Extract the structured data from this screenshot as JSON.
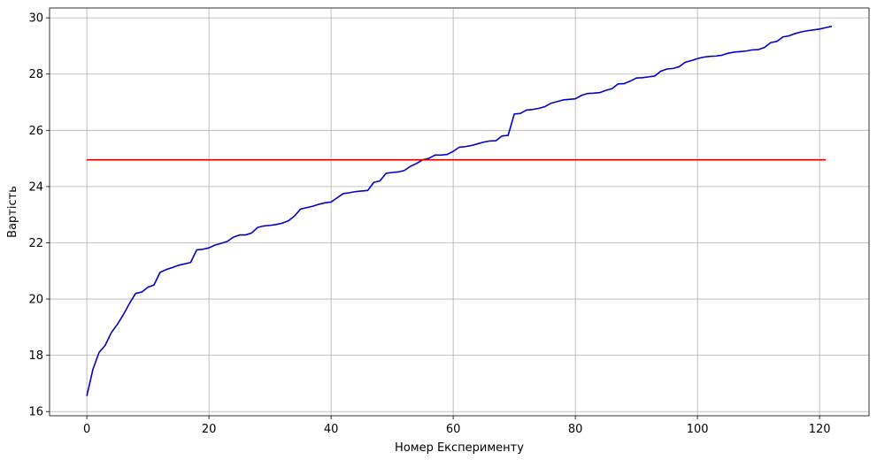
{
  "chart_data": {
    "type": "line",
    "title": "",
    "xlabel": "Номер Експерименту",
    "ylabel": "Вартість",
    "xlim": [
      -6.1,
      128.1
    ],
    "ylim": [
      15.85,
      30.35
    ],
    "xticks": [
      0,
      20,
      40,
      60,
      80,
      100,
      120
    ],
    "yticks": [
      16,
      18,
      20,
      22,
      24,
      26,
      28,
      30
    ],
    "grid": true,
    "legend": "none",
    "colors": {
      "series": "#0000cc",
      "reference": "#dd0000",
      "grid": "#b0b0b0",
      "frame": "#000000"
    },
    "series": [
      {
        "x": [
          0,
          1,
          2,
          3,
          4,
          5,
          6,
          7,
          8,
          9,
          10,
          11,
          12,
          13,
          14,
          15,
          16,
          17,
          18,
          19,
          20,
          21,
          22,
          23,
          24,
          25,
          26,
          27,
          28,
          29,
          30,
          31,
          32,
          33,
          34,
          35,
          36,
          37,
          38,
          39,
          40,
          41,
          42,
          43,
          44,
          45,
          46,
          47,
          48,
          49,
          50,
          51,
          52,
          53,
          54,
          55,
          56,
          57,
          58,
          59,
          60,
          61,
          62,
          63,
          64,
          65,
          66,
          67,
          68,
          69,
          70,
          71,
          72,
          73,
          74,
          75,
          76,
          77,
          78,
          79,
          80,
          81,
          82,
          83,
          84,
          85,
          86,
          87,
          88,
          89,
          90,
          91,
          92,
          93,
          94,
          95,
          96,
          97,
          98,
          99,
          100,
          101,
          102,
          103,
          104,
          105,
          106,
          107,
          108,
          109,
          110,
          111,
          112,
          113,
          114,
          115,
          116,
          117,
          118,
          119,
          120,
          121,
          122
        ],
        "values": [
          16.55,
          17.5,
          18.1,
          18.35,
          18.8,
          19.1,
          19.45,
          19.85,
          20.2,
          20.25,
          20.42,
          20.5,
          20.95,
          21.05,
          21.12,
          21.2,
          21.25,
          21.3,
          21.75,
          21.77,
          21.82,
          21.92,
          21.98,
          22.05,
          22.2,
          22.28,
          22.28,
          22.35,
          22.55,
          22.6,
          22.62,
          22.65,
          22.7,
          22.78,
          22.95,
          23.2,
          23.25,
          23.3,
          23.37,
          23.42,
          23.45,
          23.6,
          23.75,
          23.78,
          23.82,
          23.84,
          23.86,
          24.15,
          24.2,
          24.47,
          24.5,
          24.52,
          24.57,
          24.72,
          24.82,
          24.95,
          25.0,
          25.12,
          25.12,
          25.14,
          25.25,
          25.4,
          25.42,
          25.46,
          25.52,
          25.58,
          25.62,
          25.63,
          25.8,
          25.82,
          26.58,
          26.6,
          26.72,
          26.74,
          26.78,
          26.84,
          26.96,
          27.02,
          27.08,
          27.1,
          27.12,
          27.24,
          27.31,
          27.32,
          27.34,
          27.42,
          27.48,
          27.65,
          27.66,
          27.75,
          27.86,
          27.87,
          27.9,
          27.93,
          28.1,
          28.18,
          28.2,
          28.26,
          28.42,
          28.48,
          28.55,
          28.6,
          28.63,
          28.64,
          28.67,
          28.74,
          28.78,
          28.8,
          28.82,
          28.86,
          28.87,
          28.95,
          29.12,
          29.16,
          29.32,
          29.36,
          29.44,
          29.5,
          29.54,
          29.57,
          29.6,
          29.65,
          29.7
        ]
      },
      {
        "x": [
          0,
          121
        ],
        "values": [
          24.95,
          24.95
        ]
      }
    ]
  }
}
